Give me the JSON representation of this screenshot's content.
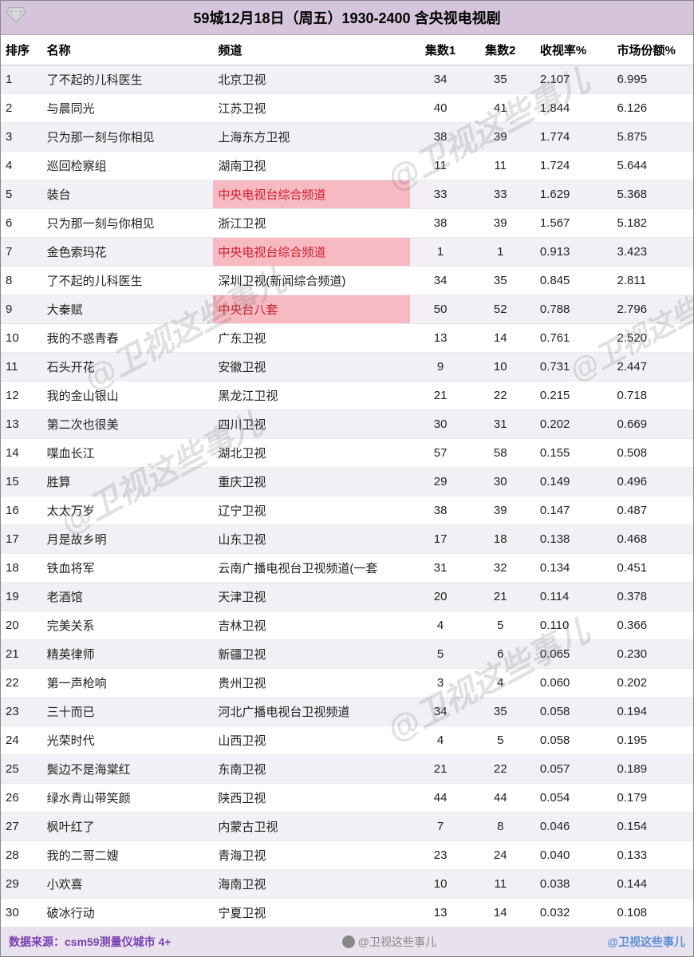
{
  "title": "59城12月18日（周五）1930-2400 含央视电视剧",
  "columns": [
    "排序",
    "名称",
    "频道",
    "集数1",
    "集数2",
    "收视率%",
    "市场份额%"
  ],
  "highlight_channel_color": "#f7b9c2",
  "highlight_text_color": "#d02030",
  "row_odd_bg": "#f2f0f5",
  "row_even_bg": "#ffffff",
  "title_bg": "#d5c4db",
  "footer_bg": "#e9e2ee",
  "rows": [
    {
      "rank": 1,
      "name": "了不起的儿科医生",
      "channel": "北京卫视",
      "ep1": 34,
      "ep2": 35,
      "rating": "2.107",
      "share": "6.995",
      "hl": false
    },
    {
      "rank": 2,
      "name": "与晨同光",
      "channel": "江苏卫视",
      "ep1": 40,
      "ep2": 41,
      "rating": "1.844",
      "share": "6.126",
      "hl": false
    },
    {
      "rank": 3,
      "name": "只为那一刻与你相见",
      "channel": "上海东方卫视",
      "ep1": 38,
      "ep2": 39,
      "rating": "1.774",
      "share": "5.875",
      "hl": false
    },
    {
      "rank": 4,
      "name": "巡回检察组",
      "channel": "湖南卫视",
      "ep1": 11,
      "ep2": 11,
      "rating": "1.724",
      "share": "5.644",
      "hl": false
    },
    {
      "rank": 5,
      "name": "装台",
      "channel": "中央电视台综合频道",
      "ep1": 33,
      "ep2": 33,
      "rating": "1.629",
      "share": "5.368",
      "hl": true
    },
    {
      "rank": 6,
      "name": "只为那一刻与你相见",
      "channel": "浙江卫视",
      "ep1": 38,
      "ep2": 39,
      "rating": "1.567",
      "share": "5.182",
      "hl": false
    },
    {
      "rank": 7,
      "name": "金色索玛花",
      "channel": "中央电视台综合频道",
      "ep1": 1,
      "ep2": 1,
      "rating": "0.913",
      "share": "3.423",
      "hl": true
    },
    {
      "rank": 8,
      "name": "了不起的儿科医生",
      "channel": "深圳卫视(新闻综合频道)",
      "ep1": 34,
      "ep2": 35,
      "rating": "0.845",
      "share": "2.811",
      "hl": false
    },
    {
      "rank": 9,
      "name": "大秦赋",
      "channel": "中央台八套",
      "ep1": 50,
      "ep2": 52,
      "rating": "0.788",
      "share": "2.796",
      "hl": true
    },
    {
      "rank": 10,
      "name": "我的不惑青春",
      "channel": "广东卫视",
      "ep1": 13,
      "ep2": 14,
      "rating": "0.761",
      "share": "2.520",
      "hl": false
    },
    {
      "rank": 11,
      "name": "石头开花",
      "channel": "安徽卫视",
      "ep1": 9,
      "ep2": 10,
      "rating": "0.731",
      "share": "2.447",
      "hl": false
    },
    {
      "rank": 12,
      "name": "我的金山银山",
      "channel": "黑龙江卫视",
      "ep1": 21,
      "ep2": 22,
      "rating": "0.215",
      "share": "0.718",
      "hl": false
    },
    {
      "rank": 13,
      "name": "第二次也很美",
      "channel": "四川卫视",
      "ep1": 30,
      "ep2": 31,
      "rating": "0.202",
      "share": "0.669",
      "hl": false
    },
    {
      "rank": 14,
      "name": "喋血长江",
      "channel": "湖北卫视",
      "ep1": 57,
      "ep2": 58,
      "rating": "0.155",
      "share": "0.508",
      "hl": false
    },
    {
      "rank": 15,
      "name": "胜算",
      "channel": "重庆卫视",
      "ep1": 29,
      "ep2": 30,
      "rating": "0.149",
      "share": "0.496",
      "hl": false
    },
    {
      "rank": 16,
      "name": "太太万岁",
      "channel": "辽宁卫视",
      "ep1": 38,
      "ep2": 39,
      "rating": "0.147",
      "share": "0.487",
      "hl": false
    },
    {
      "rank": 17,
      "name": "月是故乡明",
      "channel": "山东卫视",
      "ep1": 17,
      "ep2": 18,
      "rating": "0.138",
      "share": "0.468",
      "hl": false
    },
    {
      "rank": 18,
      "name": "铁血将军",
      "channel": "云南广播电视台卫视频道(一套",
      "ep1": 31,
      "ep2": 32,
      "rating": "0.134",
      "share": "0.451",
      "hl": false
    },
    {
      "rank": 19,
      "name": "老酒馆",
      "channel": "天津卫视",
      "ep1": 20,
      "ep2": 21,
      "rating": "0.114",
      "share": "0.378",
      "hl": false
    },
    {
      "rank": 20,
      "name": "完美关系",
      "channel": "吉林卫视",
      "ep1": 4,
      "ep2": 5,
      "rating": "0.110",
      "share": "0.366",
      "hl": false
    },
    {
      "rank": 21,
      "name": "精英律师",
      "channel": "新疆卫视",
      "ep1": 5,
      "ep2": 6,
      "rating": "0.065",
      "share": "0.230",
      "hl": false
    },
    {
      "rank": 22,
      "name": "第一声枪响",
      "channel": "贵州卫视",
      "ep1": 3,
      "ep2": 4,
      "rating": "0.060",
      "share": "0.202",
      "hl": false
    },
    {
      "rank": 23,
      "name": "三十而已",
      "channel": "河北广播电视台卫视频道",
      "ep1": 34,
      "ep2": 35,
      "rating": "0.058",
      "share": "0.194",
      "hl": false
    },
    {
      "rank": 24,
      "name": "光荣时代",
      "channel": "山西卫视",
      "ep1": 4,
      "ep2": 5,
      "rating": "0.058",
      "share": "0.195",
      "hl": false
    },
    {
      "rank": 25,
      "name": "鬓边不是海棠红",
      "channel": "东南卫视",
      "ep1": 21,
      "ep2": 22,
      "rating": "0.057",
      "share": "0.189",
      "hl": false
    },
    {
      "rank": 26,
      "name": "绿水青山带笑颜",
      "channel": "陕西卫视",
      "ep1": 44,
      "ep2": 44,
      "rating": "0.054",
      "share": "0.179",
      "hl": false
    },
    {
      "rank": 27,
      "name": "枫叶红了",
      "channel": "内蒙古卫视",
      "ep1": 7,
      "ep2": 8,
      "rating": "0.046",
      "share": "0.154",
      "hl": false
    },
    {
      "rank": 28,
      "name": "我的二哥二嫂",
      "channel": "青海卫视",
      "ep1": 23,
      "ep2": 24,
      "rating": "0.040",
      "share": "0.133",
      "hl": false
    },
    {
      "rank": 29,
      "name": "小欢喜",
      "channel": "海南卫视",
      "ep1": 10,
      "ep2": 11,
      "rating": "0.038",
      "share": "0.144",
      "hl": false
    },
    {
      "rank": 30,
      "name": "破冰行动",
      "channel": "宁夏卫视",
      "ep1": 13,
      "ep2": 14,
      "rating": "0.032",
      "share": "0.108",
      "hl": false
    }
  ],
  "footer": {
    "source": "数据来源：csm59测量仪城市 4+",
    "weibo": "@卫视这些事儿",
    "tag": "@卫视这些事儿"
  },
  "watermark_text": "@卫视这些事儿"
}
